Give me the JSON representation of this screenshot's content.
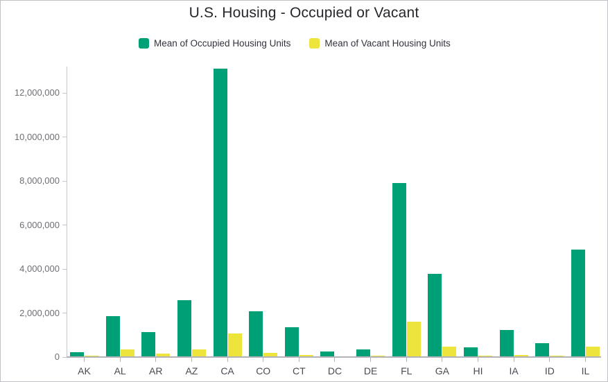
{
  "chart_data": {
    "type": "bar",
    "title": "U.S. Housing - Occupied or Vacant",
    "xlabel": "",
    "ylabel": "",
    "grid": false,
    "legend_position": "top",
    "ylim": [
      0,
      13250000
    ],
    "yticks": [
      0,
      2000000,
      4000000,
      6000000,
      8000000,
      10000000,
      12000000
    ],
    "ytick_labels": [
      "0",
      "2,000,000",
      "4,000,000",
      "6,000,000",
      "8,000,000",
      "10,000,000",
      "12,000,000"
    ],
    "categories": [
      "AK",
      "AL",
      "AR",
      "AZ",
      "CA",
      "CO",
      "CT",
      "DC",
      "DE",
      "FL",
      "GA",
      "HI",
      "IA",
      "ID",
      "IL"
    ],
    "series": [
      {
        "name": "Mean of Occupied Housing Units",
        "color": "#00a076",
        "values": [
          230000,
          1850000,
          1130000,
          2580000,
          13100000,
          2090000,
          1360000,
          260000,
          340000,
          7920000,
          3790000,
          440000,
          1240000,
          620000,
          4870000
        ]
      },
      {
        "name": "Mean of Vacant Housing Units",
        "color": "#ede43c",
        "values": [
          60000,
          350000,
          170000,
          360000,
          1060000,
          190000,
          110000,
          30000,
          65000,
          1600000,
          460000,
          70000,
          110000,
          75000,
          460000
        ]
      }
    ]
  }
}
